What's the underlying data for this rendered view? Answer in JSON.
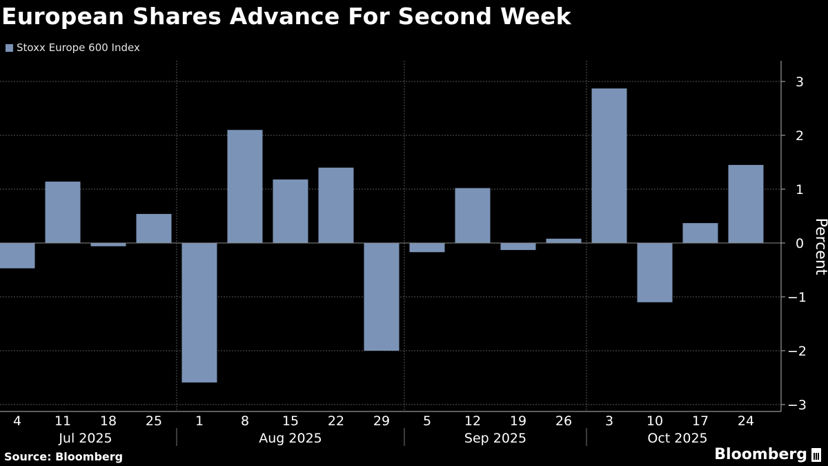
{
  "chart_data": {
    "type": "bar",
    "title": "European Shares Advance For Second Week",
    "ylabel": "Percent",
    "ylim": [
      -3.4,
      3.4
    ],
    "yticks": [
      3,
      2,
      1,
      0,
      -1,
      -2,
      -3
    ],
    "colors": {
      "bar": "#7b93b6",
      "background": "#000000"
    },
    "legend": {
      "position": "top-left"
    },
    "series": [
      {
        "name": "Stoxx Europe 600 Index",
        "values": [
          -0.47,
          1.14,
          -0.06,
          0.54,
          -2.59,
          2.1,
          1.18,
          1.4,
          -2.0,
          -0.17,
          1.02,
          -0.13,
          0.08,
          2.87,
          -1.1,
          0.37,
          1.45
        ]
      }
    ],
    "categories": [
      "4",
      "11",
      "18",
      "25",
      "1",
      "8",
      "15",
      "22",
      "29",
      "5",
      "12",
      "19",
      "26",
      "3",
      "10",
      "17",
      "24"
    ],
    "month_groups": [
      {
        "label": "Jul 2025",
        "first": 0,
        "last": 3
      },
      {
        "label": "Aug 2025",
        "first": 4,
        "last": 8
      },
      {
        "label": "Sep 2025",
        "first": 9,
        "last": 12
      },
      {
        "label": "Oct 2025",
        "first": 13,
        "last": 16
      }
    ],
    "grid": true
  },
  "footer": {
    "source": "Source: Bloomberg",
    "brand": "Bloomberg"
  }
}
